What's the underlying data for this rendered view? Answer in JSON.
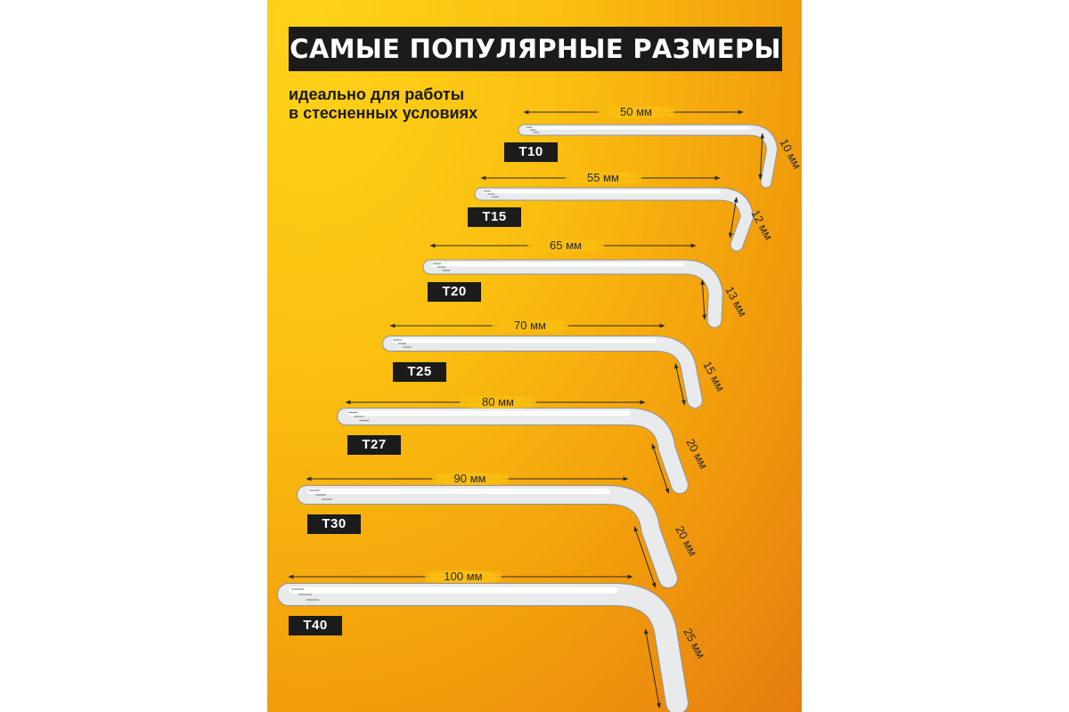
{
  "header": {
    "title": "САМЫЕ ПОПУЛЯРНЫЕ РАЗМЕРЫ"
  },
  "subtitle": {
    "line1": "идеально для работы",
    "line2": "в стесненных условиях"
  },
  "keys": [
    {
      "size": "T10",
      "length": "50 мм",
      "hook": "10 мм"
    },
    {
      "size": "T15",
      "length": "55 мм",
      "hook": "12 мм"
    },
    {
      "size": "T20",
      "length": "65 мм",
      "hook": "13 мм"
    },
    {
      "size": "T25",
      "length": "70 мм",
      "hook": "15 мм"
    },
    {
      "size": "T27",
      "length": "80 мм",
      "hook": "20 мм"
    },
    {
      "size": "T30",
      "length": "90 мм",
      "hook": "20 мм"
    },
    {
      "size": "T40",
      "length": "100 мм",
      "hook": "25 мм"
    }
  ],
  "colors": {
    "background_top": "#ffd21a",
    "background_bottom": "#e57d10",
    "tag_bg": "#1b1b1b",
    "steel": "#e8eaec"
  }
}
